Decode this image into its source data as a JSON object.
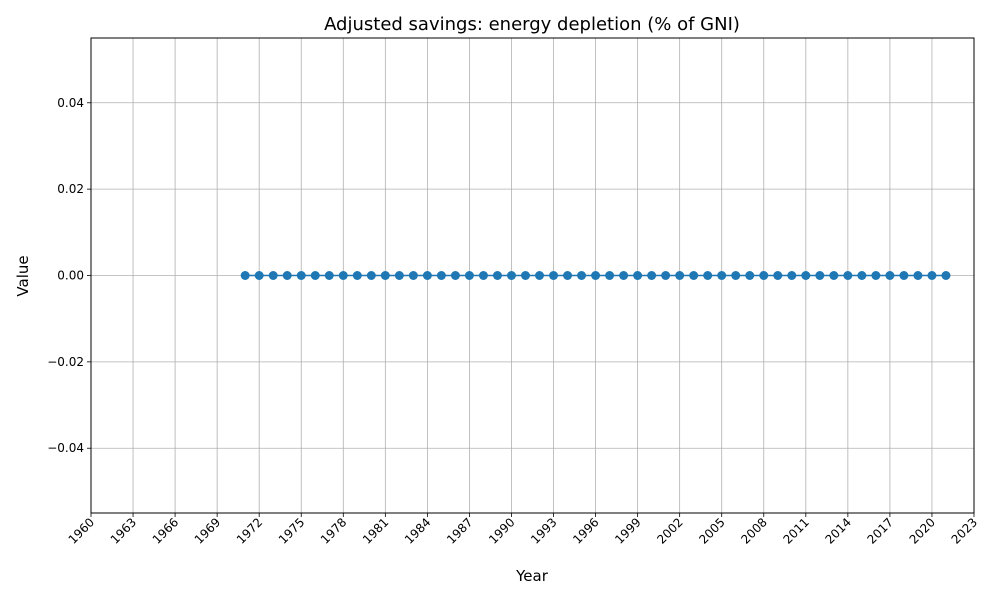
{
  "chart_data": {
    "type": "line",
    "title": "Adjusted savings: energy depletion (% of GNI)",
    "xlabel": "Year",
    "ylabel": "Value",
    "xlim": [
      1960,
      2023
    ],
    "ylim": [
      -0.055,
      0.055
    ],
    "x_ticks": [
      1960,
      1963,
      1966,
      1969,
      1972,
      1975,
      1978,
      1981,
      1984,
      1987,
      1990,
      1993,
      1996,
      1999,
      2002,
      2005,
      2008,
      2011,
      2014,
      2017,
      2020,
      2023
    ],
    "y_ticks": [
      -0.04,
      -0.02,
      0.0,
      0.02,
      0.04
    ],
    "y_tick_labels": [
      "−0.04",
      "−0.02",
      "0.00",
      "0.02",
      "0.04"
    ],
    "grid": true,
    "marker": "circle",
    "color": "#1f77b4",
    "series": [
      {
        "x": [
          1971,
          1972,
          1973,
          1974,
          1975,
          1976,
          1977,
          1978,
          1979,
          1980,
          1981,
          1982,
          1983,
          1984,
          1985,
          1986,
          1987,
          1988,
          1989,
          1990,
          1991,
          1992,
          1993,
          1994,
          1995,
          1996,
          1997,
          1998,
          1999,
          2000,
          2001,
          2002,
          2003,
          2004,
          2005,
          2006,
          2007,
          2008,
          2009,
          2010,
          2011,
          2012,
          2013,
          2014,
          2015,
          2016,
          2017,
          2018,
          2019,
          2020,
          2021
        ],
        "values": [
          0,
          0,
          0,
          0,
          0,
          0,
          0,
          0,
          0,
          0,
          0,
          0,
          0,
          0,
          0,
          0,
          0,
          0,
          0,
          0,
          0,
          0,
          0,
          0,
          0,
          0,
          0,
          0,
          0,
          0,
          0,
          0,
          0,
          0,
          0,
          0,
          0,
          0,
          0,
          0,
          0,
          0,
          0,
          0,
          0,
          0,
          0,
          0,
          0,
          0,
          0
        ]
      }
    ]
  }
}
